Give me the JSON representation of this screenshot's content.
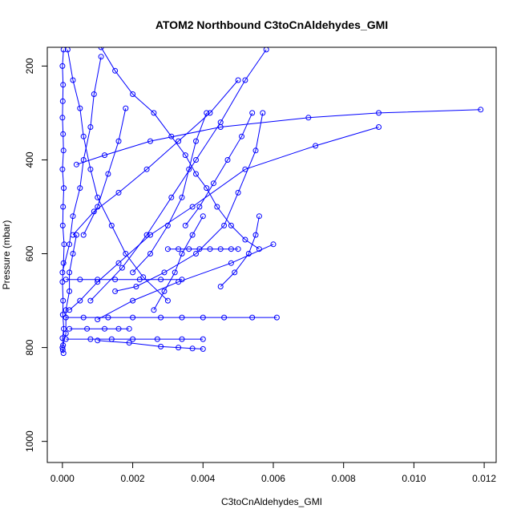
{
  "chart_data": {
    "type": "scatter",
    "title": "ATOM2 Northbound C3toCnAldehydes_GMI",
    "xlabel": "C3toCnAldehydes_GMI",
    "ylabel": "Pressure (mbar)",
    "xlim": [
      -0.00043,
      0.01234
    ],
    "ylim": [
      1045,
      160
    ],
    "y_reversed": true,
    "x_ticks": [
      "0.000",
      "0.002",
      "0.004",
      "0.006",
      "0.008",
      "0.010",
      "0.012"
    ],
    "y_ticks": [
      "200",
      "400",
      "600",
      "800",
      "1000"
    ],
    "colors": {
      "series": "#0000ff",
      "axis": "#000000",
      "background": "#ffffff"
    },
    "marker": "open-circle",
    "series": [
      {
        "x": [
          3e-05,
          0.0,
          2e-05,
          1e-05,
          0.0,
          2e-05,
          3e-05,
          0.0,
          4e-05,
          2e-05,
          1e-05,
          5e-05,
          3e-05,
          0.0,
          2e-05,
          1e-05,
          4e-05,
          0.0,
          2e-05,
          1e-05,
          3e-05
        ],
        "y": [
          165,
          200,
          240,
          275,
          310,
          345,
          380,
          420,
          460,
          500,
          540,
          580,
          620,
          660,
          700,
          730,
          760,
          780,
          795,
          805,
          812
        ]
      },
      {
        "x": [
          0.00015,
          0.0003,
          0.0005,
          0.0006,
          0.0008,
          0.001,
          0.0014,
          0.0018,
          0.0023,
          0.003
        ],
        "y": [
          165,
          230,
          290,
          350,
          420,
          480,
          540,
          600,
          650,
          700
        ]
      },
      {
        "x": [
          0.0011,
          0.0015,
          0.002,
          0.0026,
          0.0031,
          0.0035,
          0.0038,
          0.0041,
          0.0044,
          0.0048,
          0.0052,
          0.0056
        ],
        "y": [
          160,
          210,
          260,
          300,
          350,
          390,
          430,
          460,
          500,
          540,
          570,
          590
        ]
      },
      {
        "x": [
          0.0002,
          0.0005,
          0.001,
          0.0016,
          0.0025,
          0.0037,
          0.0052,
          0.0072,
          0.009
        ],
        "y": [
          720,
          700,
          660,
          620,
          560,
          500,
          420,
          370,
          330
        ]
      },
      {
        "x": [
          0.0004,
          0.0012,
          0.0025,
          0.0045,
          0.007,
          0.009,
          0.0119
        ],
        "y": [
          410,
          390,
          360,
          330,
          310,
          300,
          293
        ]
      },
      {
        "x": [
          0.0008,
          0.0017,
          0.0024,
          0.0031,
          0.0038,
          0.0045,
          0.0052,
          0.0058
        ],
        "y": [
          700,
          630,
          560,
          480,
          400,
          320,
          230,
          165
        ]
      },
      {
        "x": [
          0.0,
          0.0002,
          0.0003,
          0.0005,
          0.0006,
          0.0008,
          0.0009,
          0.0011
        ],
        "y": [
          640,
          580,
          520,
          460,
          400,
          330,
          260,
          180
        ]
      },
      {
        "x": [
          0.0001,
          0.0006,
          0.0013,
          0.002,
          0.0028,
          0.0034,
          0.004,
          0.0046,
          0.0054,
          0.0061
        ],
        "y": [
          736,
          736,
          736,
          736,
          736,
          736,
          736,
          736,
          736,
          736
        ]
      },
      {
        "x": [
          0.003,
          0.0033,
          0.0036,
          0.0039,
          0.0042,
          0.0045,
          0.0048,
          0.005
        ],
        "y": [
          590,
          590,
          590,
          590,
          590,
          590,
          590,
          590
        ]
      },
      {
        "x": [
          0.0001,
          0.0005,
          0.001,
          0.0015,
          0.0022,
          0.0028,
          0.0034
        ],
        "y": [
          655,
          655,
          655,
          655,
          655,
          655,
          655
        ]
      },
      {
        "x": [
          0.0002,
          0.0007,
          0.0012,
          0.0016,
          0.0019
        ],
        "y": [
          760,
          760,
          760,
          760,
          760
        ]
      },
      {
        "x": [
          0.0001,
          0.0008,
          0.0014,
          0.002,
          0.0027,
          0.0034,
          0.004
        ],
        "y": [
          782,
          782,
          782,
          782,
          782,
          782,
          782
        ]
      },
      {
        "x": [
          0.001,
          0.0019,
          0.0028,
          0.0033,
          0.0037,
          0.004
        ],
        "y": [
          785,
          790,
          798,
          800,
          802,
          803
        ]
      },
      {
        "x": [
          0.0015,
          0.0021,
          0.0029,
          0.0038,
          0.0046,
          0.005,
          0.0055,
          0.0057
        ],
        "y": [
          680,
          670,
          640,
          600,
          540,
          470,
          380,
          300
        ]
      },
      {
        "x": [
          0.002,
          0.0025,
          0.003,
          0.0034,
          0.0036,
          0.0038,
          0.0041
        ],
        "y": [
          640,
          600,
          540,
          480,
          420,
          360,
          300
        ]
      },
      {
        "x": [
          0.0003,
          0.0009,
          0.0016,
          0.0024,
          0.0033,
          0.0042,
          0.005
        ],
        "y": [
          560,
          510,
          470,
          420,
          360,
          300,
          230
        ]
      },
      {
        "x": [
          0.0006,
          0.001,
          0.0013,
          0.0016,
          0.0018
        ],
        "y": [
          560,
          500,
          430,
          360,
          290
        ]
      },
      {
        "x": [
          0.0026,
          0.0029,
          0.0032,
          0.0034,
          0.0037,
          0.004
        ],
        "y": [
          720,
          680,
          640,
          600,
          560,
          520
        ]
      },
      {
        "x": [
          0.0,
          0.0001,
          0.0001,
          0.0002,
          0.0002,
          0.0003,
          0.0004
        ],
        "y": [
          800,
          770,
          720,
          680,
          640,
          600,
          560
        ]
      },
      {
        "x": [
          0.0045,
          0.0049,
          0.0053,
          0.0055,
          0.0056
        ],
        "y": [
          670,
          640,
          600,
          560,
          520
        ]
      },
      {
        "x": [
          0.001,
          0.002,
          0.0033,
          0.0048,
          0.006
        ],
        "y": [
          740,
          700,
          660,
          620,
          580
        ]
      },
      {
        "x": [
          0.0035,
          0.0039,
          0.0043,
          0.0047,
          0.0051,
          0.0054
        ],
        "y": [
          540,
          500,
          450,
          400,
          350,
          300
        ]
      }
    ]
  }
}
